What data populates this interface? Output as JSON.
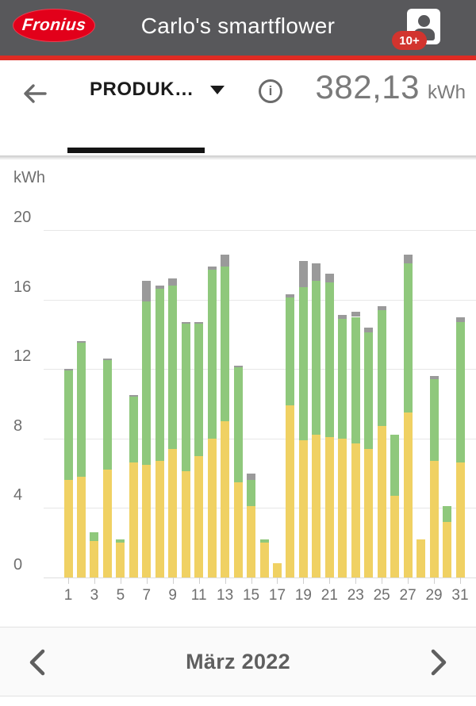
{
  "header": {
    "logo_text": "Fronius",
    "title": "Carlo's smartflower",
    "badge": "10+"
  },
  "toolbar": {
    "back_icon": "arrow-left",
    "tab_label": "PRODUK…",
    "info_icon": "info-circle",
    "total_value": "382,13",
    "total_unit": "kWh"
  },
  "footer": {
    "prev_icon": "chevron-left",
    "period_label": "März 2022",
    "next_icon": "chevron-right"
  },
  "colors": {
    "header_bg": "#58585B",
    "accent_red": "#DF2B23",
    "logo_red": "#E2001A",
    "badge_red": "#D2342E",
    "bar_yellow": "#F0D163",
    "bar_green": "#8FC87C",
    "bar_gray": "#9A9A9A",
    "grid": "#E7E7E7",
    "axis_text": "#6F6F6F"
  },
  "chart_data": {
    "type": "bar",
    "stacked": true,
    "unit": "kWh",
    "title": "",
    "xlabel": "",
    "ylabel": "kWh",
    "ylim": [
      0,
      20
    ],
    "yticks": [
      0,
      4,
      8,
      12,
      16,
      20
    ],
    "grid": true,
    "legend": "none",
    "categories": [
      1,
      2,
      3,
      4,
      5,
      6,
      7,
      8,
      9,
      10,
      11,
      12,
      13,
      14,
      15,
      16,
      17,
      18,
      19,
      20,
      21,
      22,
      23,
      24,
      25,
      26,
      27,
      28,
      29,
      30,
      31
    ],
    "xtick_labels": [
      "1",
      "3",
      "5",
      "7",
      "9",
      "11",
      "13",
      "15",
      "17",
      "19",
      "21",
      "23",
      "25",
      "27",
      "29",
      "31"
    ],
    "series": [
      {
        "name": "yellow",
        "color": "#F0D163",
        "values": [
          5.6,
          5.8,
          2.1,
          6.2,
          2.0,
          6.6,
          6.5,
          6.7,
          7.4,
          6.1,
          7.0,
          8.0,
          9.0,
          5.5,
          4.1,
          2.0,
          0.8,
          9.9,
          7.9,
          8.2,
          8.1,
          8.0,
          7.7,
          7.4,
          8.7,
          4.7,
          9.5,
          2.2,
          6.7,
          3.2,
          6.6
        ]
      },
      {
        "name": "green",
        "color": "#8FC87C",
        "values": [
          6.3,
          7.7,
          0.5,
          6.3,
          0.2,
          3.8,
          9.4,
          9.9,
          9.4,
          8.5,
          7.6,
          9.7,
          8.9,
          6.6,
          1.5,
          0.2,
          0,
          6.2,
          8.8,
          8.9,
          8.9,
          6.9,
          7.3,
          6.7,
          6.7,
          3.5,
          8.6,
          0,
          4.7,
          0.9,
          8.1
        ]
      },
      {
        "name": "gray",
        "color": "#9A9A9A",
        "values": [
          0.1,
          0.1,
          0,
          0.1,
          0,
          0.1,
          1.2,
          0.2,
          0.4,
          0.1,
          0.1,
          0.2,
          0.7,
          0.1,
          0.4,
          0,
          0,
          0.2,
          1.5,
          1.0,
          0.5,
          0.2,
          0.3,
          0.3,
          0.2,
          0,
          0.5,
          0,
          0.2,
          0,
          0.3
        ]
      }
    ],
    "period_total": "382,13 kWh",
    "period": "März 2022"
  }
}
